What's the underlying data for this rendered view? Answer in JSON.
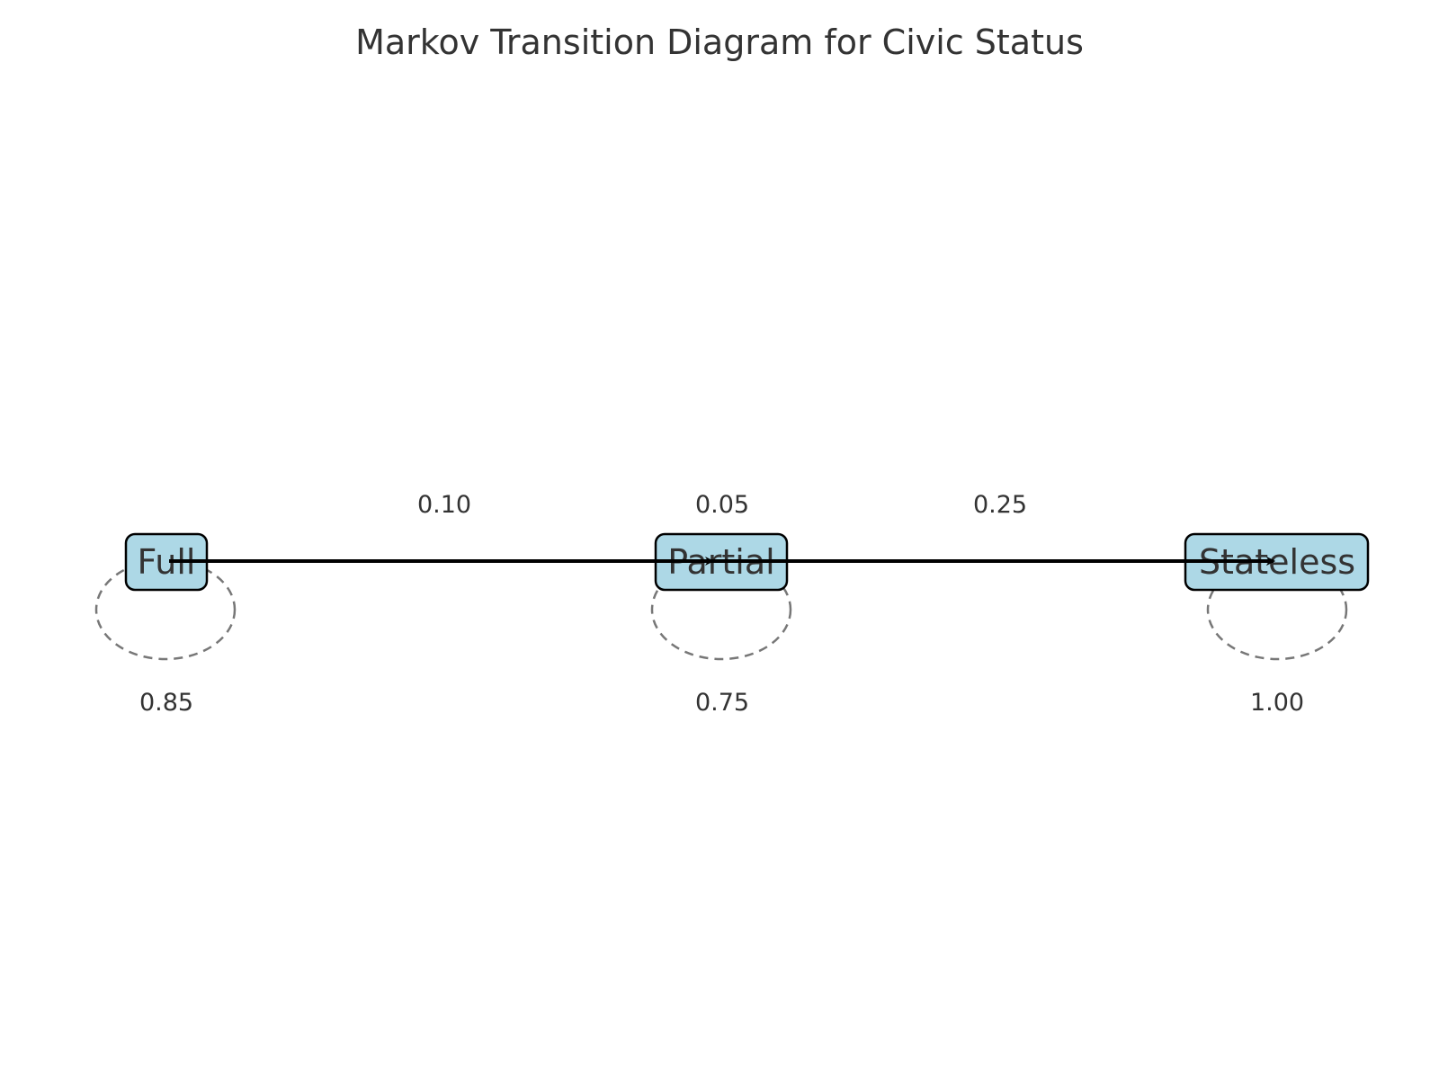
{
  "diagram": {
    "title": "Markov Transition Diagram for Civic Status",
    "nodes": [
      {
        "id": "full",
        "label": "Full"
      },
      {
        "id": "partial",
        "label": "Partial"
      },
      {
        "id": "stateless",
        "label": "Stateless"
      }
    ],
    "edges": [
      {
        "from": "full",
        "to": "partial",
        "probability": "0.10"
      },
      {
        "from": "full",
        "to": "stateless",
        "probability": "0.05"
      },
      {
        "from": "partial",
        "to": "stateless",
        "probability": "0.25"
      }
    ],
    "self_loops": [
      {
        "node": "full",
        "probability": "0.85"
      },
      {
        "node": "partial",
        "probability": "0.75"
      },
      {
        "node": "stateless",
        "probability": "1.00"
      }
    ],
    "colors": {
      "node_fill": "#add8e6",
      "node_stroke": "#000000",
      "edge": "#000000",
      "loop": "#777777",
      "text": "#333333"
    }
  }
}
